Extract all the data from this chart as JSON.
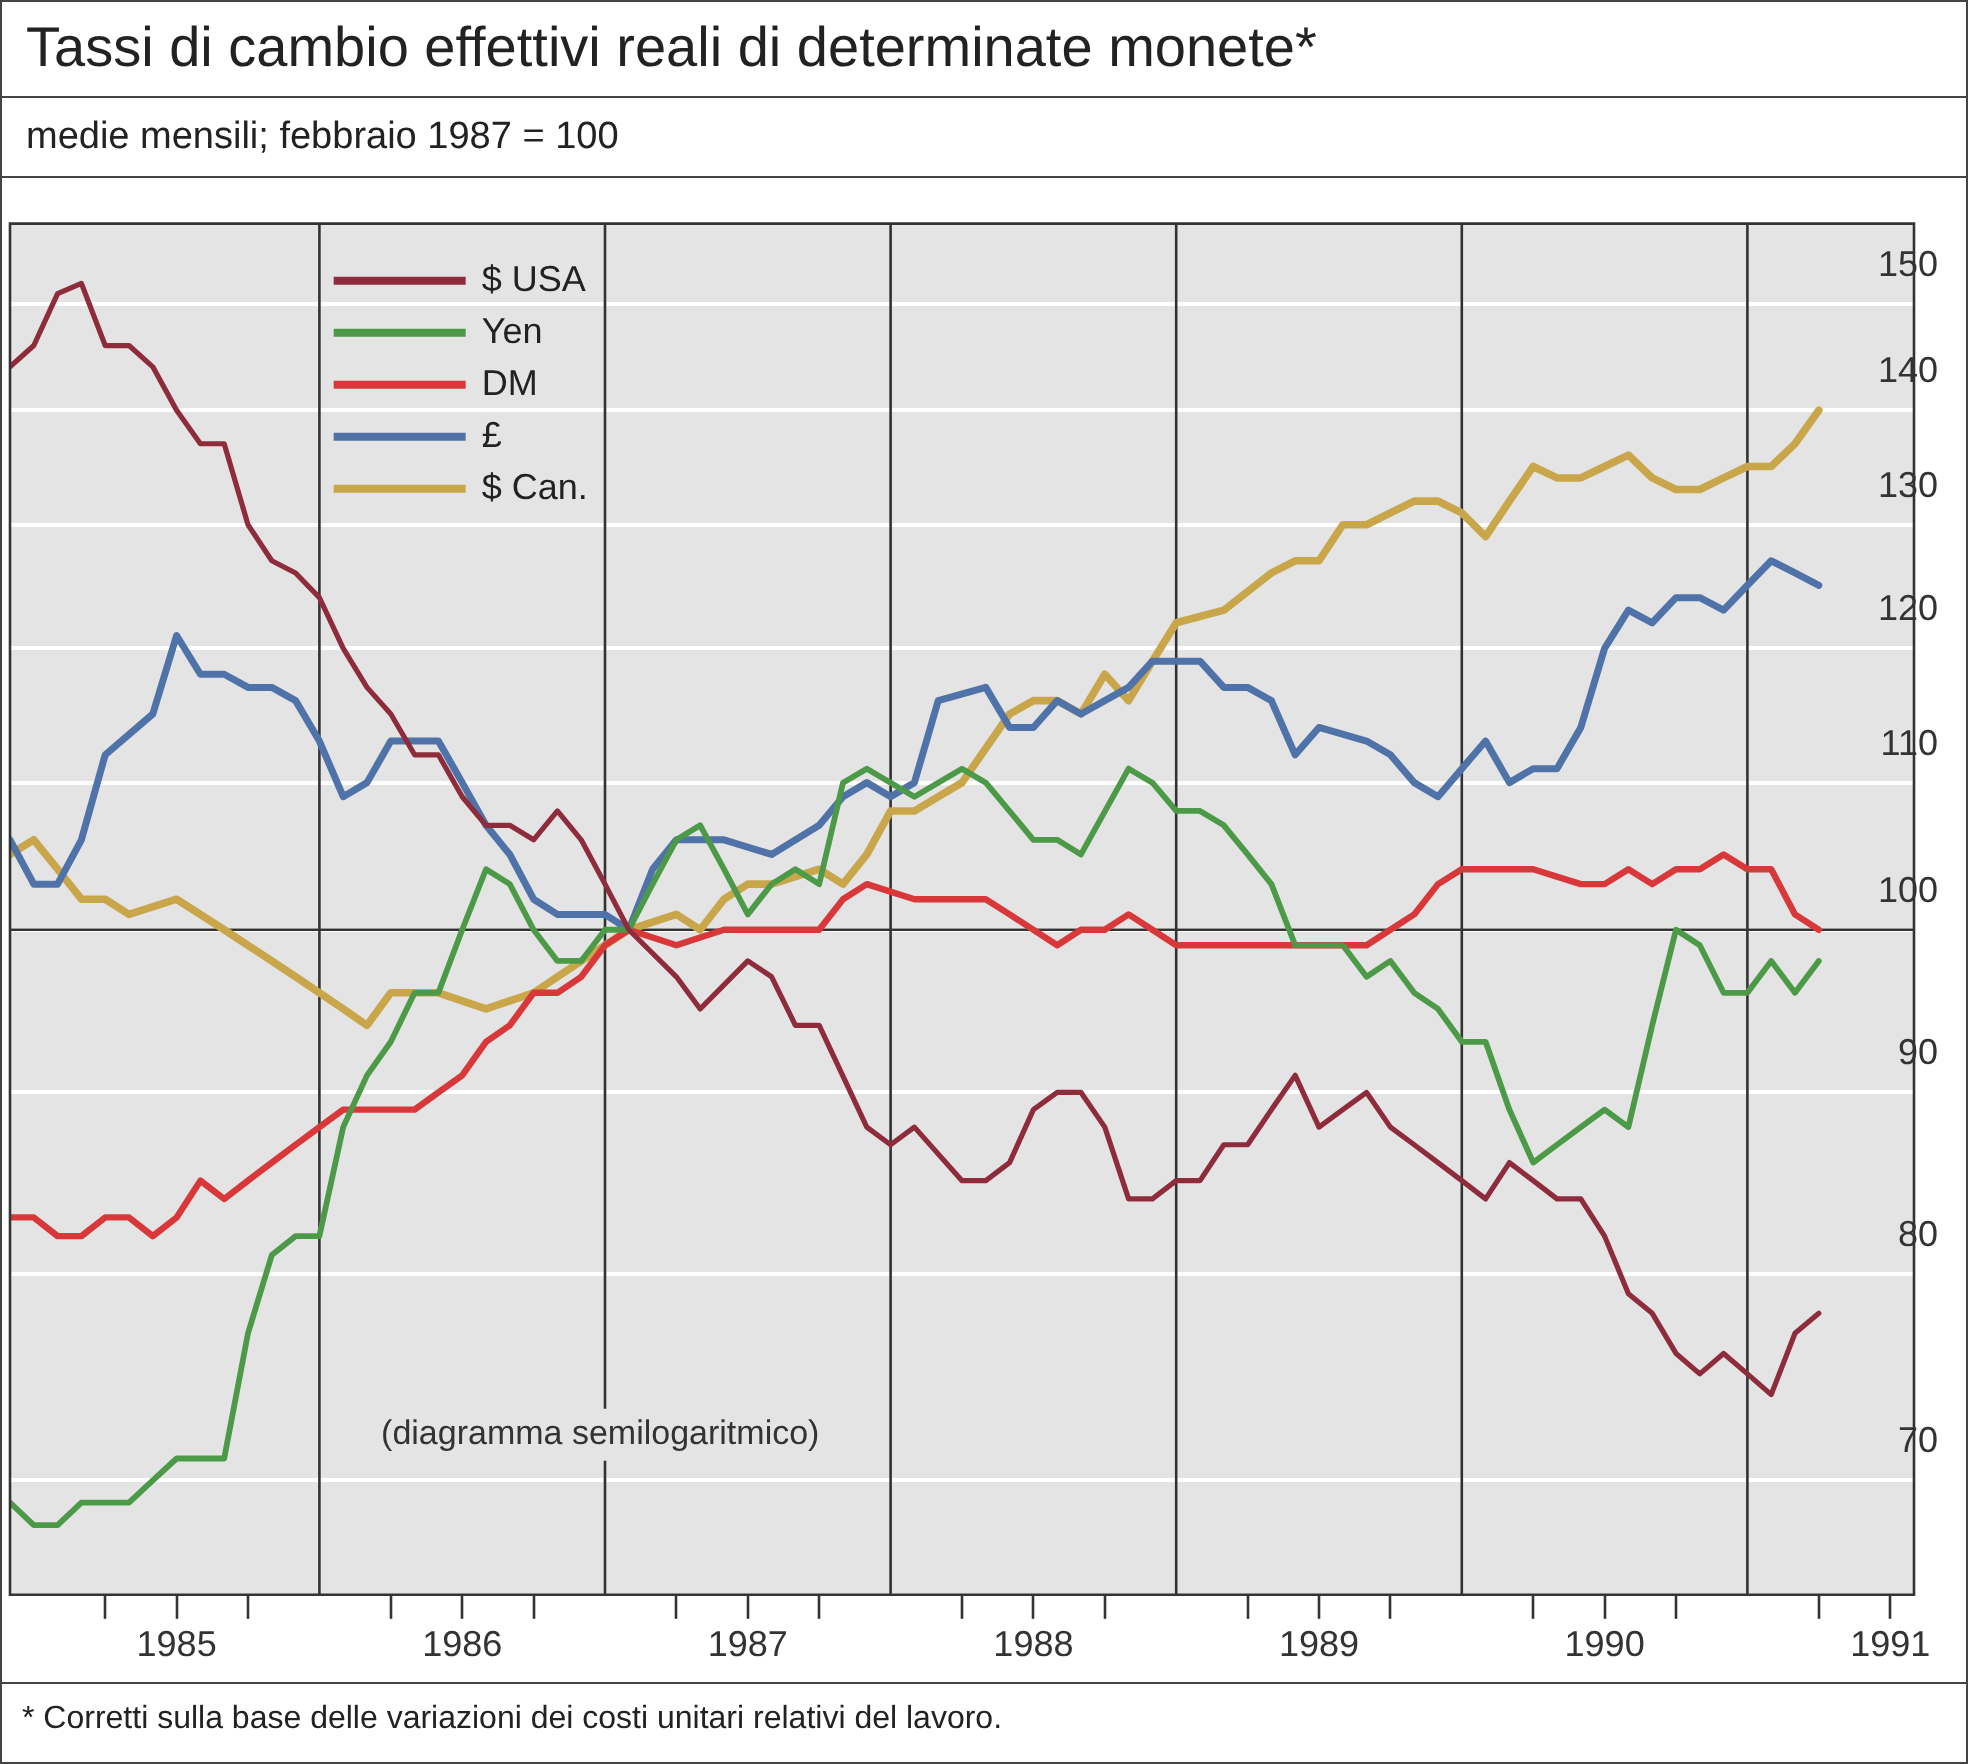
{
  "chart_data": {
    "type": "line",
    "title": "Tassi di cambio effettivi reali di determinate monete*",
    "subtitle": "medie mensili; febbraio 1987 = 100",
    "annotations": [
      "(diagramma semilogaritmico)",
      "* Corretti sulla base delle variazioni dei costi unitari relativi del lavoro."
    ],
    "log": true,
    "grid": "y",
    "legend": "top left",
    "xlim": [
      "1984-12",
      "1991-08"
    ],
    "xticks": [
      {
        "value": "1985-04",
        "label": null
      },
      {
        "value": "1985-07",
        "label": "1985"
      },
      {
        "value": "1985-10",
        "label": null
      },
      {
        "value": "1986-04",
        "label": null
      },
      {
        "value": "1986-07",
        "label": "1986"
      },
      {
        "value": "1986-10",
        "label": null
      },
      {
        "value": "1987-04",
        "label": null
      },
      {
        "value": "1987-07",
        "label": "1987"
      },
      {
        "value": "1987-10",
        "label": null
      },
      {
        "value": "1988-04",
        "label": null
      },
      {
        "value": "1988-07",
        "label": "1988"
      },
      {
        "value": "1988-10",
        "label": null
      },
      {
        "value": "1989-04",
        "label": null
      },
      {
        "value": "1989-07",
        "label": "1989"
      },
      {
        "value": "1989-10",
        "label": null
      },
      {
        "value": "1990-04",
        "label": null
      },
      {
        "value": "1990-07",
        "label": "1990"
      },
      {
        "value": "1990-10",
        "label": null
      },
      {
        "value": "1991-04",
        "label": null
      },
      {
        "value": "1991-07",
        "label": "1991"
      }
    ],
    "ylim": [
      65,
      158
    ],
    "yticks": [
      70,
      80,
      90,
      100,
      110,
      120,
      130,
      140,
      150
    ],
    "ref_lines": [
      {
        "axis": "y",
        "value": 100,
        "label": null
      },
      {
        "axis": "x",
        "value": "1986-01",
        "label": null
      },
      {
        "axis": "x",
        "value": "1987-01",
        "label": null
      },
      {
        "axis": "x",
        "value": "1988-01",
        "label": null
      },
      {
        "axis": "x",
        "value": "1989-01",
        "label": null
      },
      {
        "axis": "x",
        "value": "1990-01",
        "label": null
      },
      {
        "axis": "x",
        "value": "1991-01",
        "label": null
      }
    ],
    "series": [
      {
        "name": "$ USA",
        "color": "#8e2c3c",
        "x": [
          "1984-12",
          "1985-01",
          "1985-02",
          "1985-03",
          "1985-04",
          "1985-05",
          "1985-06",
          "1985-07",
          "1985-08",
          "1985-09",
          "1985-10",
          "1985-11",
          "1985-12",
          "1986-01",
          "1986-02",
          "1986-03",
          "1986-04",
          "1986-05",
          "1986-06",
          "1986-07",
          "1986-08",
          "1986-09",
          "1986-10",
          "1986-11",
          "1986-12",
          "1987-01",
          "1987-02",
          "1987-04",
          "1987-05",
          "1987-07",
          "1987-08",
          "1987-09",
          "1987-10",
          "1987-12",
          "1988-01",
          "1988-02",
          "1988-04",
          "1988-05",
          "1988-06",
          "1988-07",
          "1988-08",
          "1988-09",
          "1988-10",
          "1988-11",
          "1988-12",
          "1989-01",
          "1989-02",
          "1989-03",
          "1989-04",
          "1989-05",
          "1989-06",
          "1989-07",
          "1989-08",
          "1989-09",
          "1989-10",
          "1989-11",
          "1989-12",
          "1990-01",
          "1990-02",
          "1990-03",
          "1990-04",
          "1990-05",
          "1990-06",
          "1990-07",
          "1990-08",
          "1990-09",
          "1990-10",
          "1990-11",
          "1990-12",
          "1991-01",
          "1991-02",
          "1991-03",
          "1991-04"
        ],
        "values": [
          144,
          146,
          151,
          152,
          146,
          146,
          144,
          140,
          137,
          137,
          130,
          127,
          126,
          124,
          120,
          117,
          115,
          112,
          112,
          109,
          107,
          107,
          106,
          108,
          106,
          103,
          100,
          97,
          95,
          98,
          97,
          94,
          94,
          88,
          87,
          88,
          85,
          85,
          86,
          89,
          90,
          90,
          88,
          84,
          84,
          85,
          85,
          87,
          87,
          89,
          91,
          88,
          89,
          90,
          88,
          87,
          86,
          85,
          84,
          86,
          85,
          84,
          84,
          82,
          79,
          78,
          76,
          75,
          76,
          75,
          74,
          77,
          78
        ]
      },
      {
        "name": "Yen",
        "color": "#4c9a48",
        "x": [
          "1984-12",
          "1985-01",
          "1985-02",
          "1985-03",
          "1985-04",
          "1985-05",
          "1985-06",
          "1985-07",
          "1985-08",
          "1985-09",
          "1985-10",
          "1985-11",
          "1985-12",
          "1986-01",
          "1986-02",
          "1986-03",
          "1986-04",
          "1986-05",
          "1986-06",
          "1986-07",
          "1986-08",
          "1986-09",
          "1986-10",
          "1986-11",
          "1986-12",
          "1987-01",
          "1987-02",
          "1987-03",
          "1987-04",
          "1987-05",
          "1987-06",
          "1987-07",
          "1987-08",
          "1987-09",
          "1987-10",
          "1987-11",
          "1987-12",
          "1988-01",
          "1988-02",
          "1988-04",
          "1988-05",
          "1988-07",
          "1988-08",
          "1988-09",
          "1988-11",
          "1988-12",
          "1989-01",
          "1989-02",
          "1989-03",
          "1989-04",
          "1989-05",
          "1989-06",
          "1989-07",
          "1989-08",
          "1989-09",
          "1989-10",
          "1989-11",
          "1989-12",
          "1990-01",
          "1990-02",
          "1990-03",
          "1990-04",
          "1990-05",
          "1990-06",
          "1990-07",
          "1990-08",
          "1990-09",
          "1990-10",
          "1990-11",
          "1990-12",
          "1991-01",
          "1991-02",
          "1991-03",
          "1991-04"
        ],
        "values": [
          69,
          68,
          68,
          69,
          69,
          69,
          70,
          71,
          71,
          71,
          77,
          81,
          82,
          82,
          88,
          91,
          93,
          96,
          96,
          100,
          104,
          103,
          100,
          98,
          98,
          100,
          100,
          103,
          106,
          107,
          104,
          101,
          103,
          104,
          103,
          110,
          111,
          110,
          109,
          111,
          110,
          106,
          106,
          105,
          111,
          110,
          108,
          108,
          107,
          105,
          103,
          99,
          99,
          99,
          97,
          98,
          96,
          95,
          93,
          93,
          89,
          86,
          87,
          88,
          89,
          88,
          94,
          100,
          99,
          96,
          96,
          98,
          96,
          98
        ]
      },
      {
        "name": "DM",
        "color": "#d9383a",
        "x": [
          "1984-12",
          "1985-01",
          "1985-02",
          "1985-03",
          "1985-04",
          "1985-05",
          "1985-06",
          "1985-07",
          "1985-08",
          "1985-09",
          "1985-10",
          "1985-11",
          "1985-12",
          "1986-01",
          "1986-02",
          "1986-03",
          "1986-04",
          "1986-05",
          "1986-06",
          "1986-07",
          "1986-08",
          "1986-09",
          "1986-10",
          "1986-11",
          "1986-12",
          "1987-01",
          "1987-02",
          "1987-04",
          "1987-06",
          "1987-08",
          "1987-10",
          "1987-11",
          "1987-12",
          "1988-02",
          "1988-03",
          "1988-05",
          "1988-06",
          "1988-08",
          "1988-09",
          "1988-10",
          "1988-11",
          "1988-12",
          "1989-01",
          "1989-02",
          "1989-04",
          "1989-05",
          "1989-07",
          "1989-09",
          "1989-10",
          "1989-11",
          "1989-12",
          "1990-01",
          "1990-03",
          "1990-04",
          "1990-06",
          "1990-07",
          "1990-08",
          "1990-09",
          "1990-10",
          "1990-11",
          "1990-12",
          "1991-01",
          "1991-02",
          "1991-03",
          "1991-04"
        ],
        "values": [
          83,
          83,
          82,
          82,
          83,
          83,
          82,
          83,
          85,
          84,
          85,
          86,
          87,
          88,
          89,
          89,
          89,
          89,
          90,
          91,
          93,
          94,
          96,
          96,
          97,
          99,
          100,
          99,
          100,
          100,
          100,
          102,
          103,
          102,
          102,
          102,
          101,
          99,
          100,
          100,
          101,
          100,
          99,
          99,
          99,
          99,
          99,
          99,
          100,
          101,
          103,
          104,
          104,
          104,
          103,
          103,
          104,
          103,
          104,
          104,
          105,
          104,
          104,
          101,
          100
        ]
      },
      {
        "name": "£",
        "color": "#4f73a8",
        "x": [
          "1984-12",
          "1985-01",
          "1985-02",
          "1985-03",
          "1985-04",
          "1985-06",
          "1985-07",
          "1985-08",
          "1985-09",
          "1985-10",
          "1985-11",
          "1985-12",
          "1986-01",
          "1986-02",
          "1986-03",
          "1986-04",
          "1986-05",
          "1986-06",
          "1986-07",
          "1986-08",
          "1986-09",
          "1986-10",
          "1986-11",
          "1986-12",
          "1987-01",
          "1987-02",
          "1987-03",
          "1987-04",
          "1987-05",
          "1987-06",
          "1987-08",
          "1987-10",
          "1987-11",
          "1987-12",
          "1988-01",
          "1988-02",
          "1988-03",
          "1988-05",
          "1988-06",
          "1988-07",
          "1988-08",
          "1988-09",
          "1988-10",
          "1988-11",
          "1988-12",
          "1989-01",
          "1989-02",
          "1989-03",
          "1989-04",
          "1989-05",
          "1989-06",
          "1989-07",
          "1989-09",
          "1989-10",
          "1989-11",
          "1989-12",
          "1990-01",
          "1990-02",
          "1990-03",
          "1990-04",
          "1990-05",
          "1990-06",
          "1990-07",
          "1990-08",
          "1990-09",
          "1990-10",
          "1990-11",
          "1990-12",
          "1991-01",
          "1991-02",
          "1991-03",
          "1991-04"
        ],
        "values": [
          106,
          103,
          103,
          106,
          112,
          115,
          121,
          118,
          118,
          117,
          117,
          116,
          113,
          109,
          110,
          113,
          113,
          113,
          110,
          107,
          105,
          102,
          101,
          101,
          101,
          100,
          104,
          106,
          106,
          106,
          105,
          107,
          109,
          110,
          109,
          110,
          116,
          117,
          114,
          114,
          116,
          115,
          116,
          117,
          119,
          119,
          119,
          117,
          117,
          116,
          112,
          114,
          113,
          112,
          110,
          109,
          111,
          113,
          110,
          111,
          111,
          114,
          120,
          123,
          122,
          124,
          124,
          123,
          125,
          127,
          126,
          125
        ]
      },
      {
        "name": "$ Can.",
        "color": "#c9a64a",
        "x": [
          "1984-12",
          "1985-01",
          "1985-02",
          "1985-03",
          "1985-04",
          "1985-05",
          "1985-07",
          "1985-09",
          "1985-11",
          "1985-12",
          "1986-02",
          "1986-03",
          "1986-04",
          "1986-06",
          "1986-08",
          "1986-10",
          "1986-11",
          "1987-01",
          "1987-02",
          "1987-04",
          "1987-05",
          "1987-06",
          "1987-07",
          "1987-08",
          "1987-10",
          "1987-11",
          "1987-12",
          "1988-01",
          "1988-02",
          "1988-03",
          "1988-04",
          "1988-06",
          "1988-07",
          "1988-08",
          "1988-09",
          "1988-10",
          "1988-11",
          "1988-12",
          "1989-01",
          "1989-03",
          "1989-05",
          "1989-06",
          "1989-07",
          "1989-08",
          "1989-09",
          "1989-10",
          "1989-11",
          "1989-12",
          "1990-01",
          "1990-02",
          "1990-03",
          "1990-04",
          "1990-05",
          "1990-06",
          "1990-07",
          "1990-08",
          "1990-09",
          "1990-10",
          "1990-11",
          "1990-12",
          "1991-01",
          "1991-02",
          "1991-03",
          "1991-04"
        ],
        "values": [
          105,
          106,
          104,
          102,
          102,
          101,
          102,
          100,
          98,
          97,
          95,
          94,
          96,
          96,
          95,
          96,
          97,
          99,
          100,
          101,
          100,
          102,
          103,
          103,
          104,
          103,
          105,
          108,
          108,
          109,
          110,
          115,
          116,
          116,
          115,
          118,
          116,
          119,
          122,
          123,
          126,
          127,
          127,
          130,
          130,
          131,
          132,
          132,
          131,
          129,
          132,
          135,
          134,
          134,
          135,
          136,
          134,
          133,
          133,
          134,
          135,
          135,
          137,
          140
        ]
      }
    ]
  }
}
